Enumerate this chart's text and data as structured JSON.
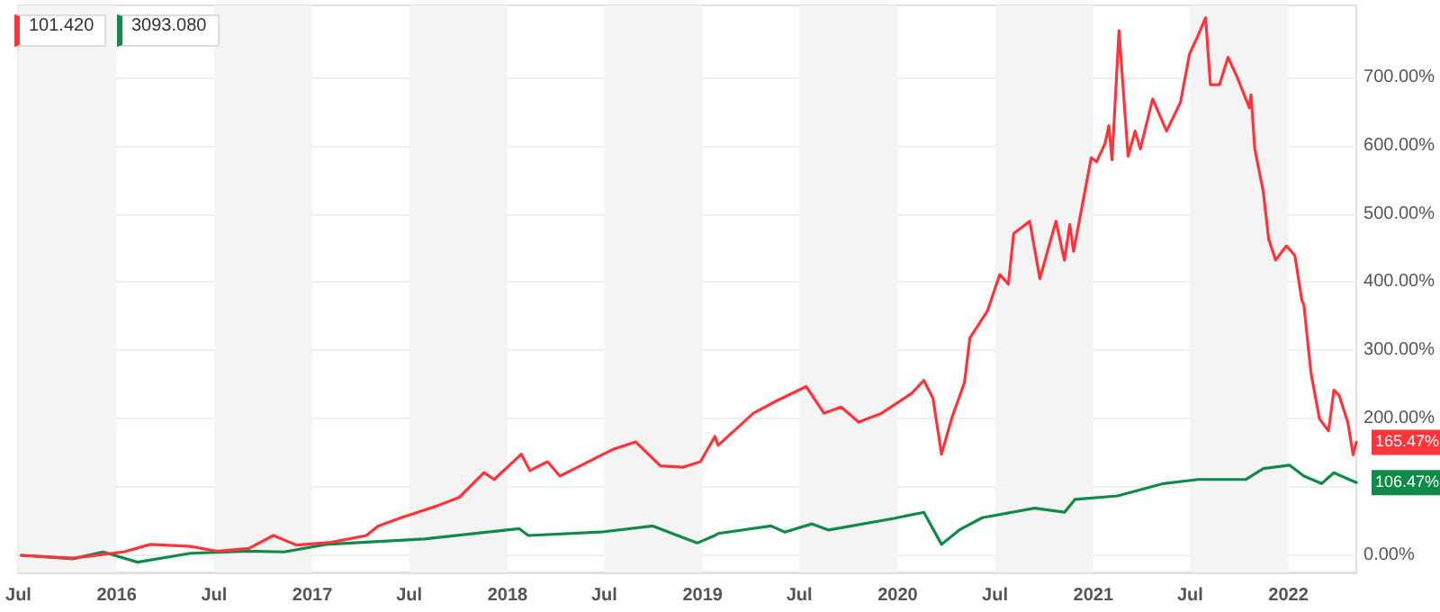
{
  "chart_data": {
    "type": "line",
    "xlim": [
      "2015-07-01",
      "2022-05-08"
    ],
    "xticks": [
      {
        "value": "2015-07-01",
        "label": "Jul"
      },
      {
        "value": "2016-01-01",
        "label": "2016"
      },
      {
        "value": "2016-07-01",
        "label": "Jul"
      },
      {
        "value": "2017-01-01",
        "label": "2017"
      },
      {
        "value": "2017-07-01",
        "label": "Jul"
      },
      {
        "value": "2018-01-01",
        "label": "2018"
      },
      {
        "value": "2018-07-01",
        "label": "Jul"
      },
      {
        "value": "2019-01-01",
        "label": "2019"
      },
      {
        "value": "2019-07-01",
        "label": "Jul"
      },
      {
        "value": "2020-01-01",
        "label": "2020"
      },
      {
        "value": "2020-07-01",
        "label": "Jul"
      },
      {
        "value": "2021-01-01",
        "label": "2021"
      },
      {
        "value": "2021-07-01",
        "label": "Jul"
      },
      {
        "value": "2022-01-01",
        "label": "2022"
      }
    ],
    "ylim": [
      -25,
      805
    ],
    "yticks": [
      {
        "value": 0,
        "label": "0.00%"
      },
      {
        "value": 100,
        "label": null
      },
      {
        "value": 200,
        "label": "200.00%"
      },
      {
        "value": 300,
        "label": "300.00%"
      },
      {
        "value": 400,
        "label": "400.00%"
      },
      {
        "value": 500,
        "label": "500.00%"
      },
      {
        "value": 600,
        "label": "600.00%"
      },
      {
        "value": 700,
        "label": "700.00%"
      }
    ],
    "grid": "y",
    "marker": "none",
    "line_style": "solid",
    "bands": [
      {
        "axis": "x",
        "from": "2015-07-01",
        "to": "2016-01-01",
        "color": "#f4f4f4"
      },
      {
        "axis": "x",
        "from": "2016-07-01",
        "to": "2017-01-01",
        "color": "#f4f4f4"
      },
      {
        "axis": "x",
        "from": "2017-07-01",
        "to": "2018-01-01",
        "color": "#f4f4f4"
      },
      {
        "axis": "x",
        "from": "2018-07-01",
        "to": "2019-01-01",
        "color": "#f4f4f4"
      },
      {
        "axis": "x",
        "from": "2019-07-01",
        "to": "2020-01-01",
        "color": "#f4f4f4"
      },
      {
        "axis": "x",
        "from": "2020-07-01",
        "to": "2021-01-01",
        "color": "#f4f4f4"
      },
      {
        "axis": "x",
        "from": "2021-07-01",
        "to": "2022-01-01",
        "color": "#f4f4f4"
      }
    ],
    "series": [
      {
        "color": "#ff333a",
        "x": [
          "2015-07-06",
          "2015-10-11",
          "2016-01-14",
          "2016-03-04",
          "2016-05-18",
          "2016-07-07",
          "2016-09-04",
          "2016-10-20",
          "2016-12-02",
          "2017-02-05",
          "2017-04-12",
          "2017-05-04",
          "2017-06-16",
          "2017-08-21",
          "2017-10-03",
          "2017-11-18",
          "2017-12-07",
          "2018-01-27",
          "2018-02-12",
          "2018-03-17",
          "2018-04-09",
          "2018-05-12",
          "2018-07-17",
          "2018-08-29",
          "2018-10-14",
          "2018-11-25",
          "2018-12-28",
          "2019-01-24",
          "2019-01-30",
          "2019-04-06",
          "2019-05-19",
          "2019-07-14",
          "2019-08-16",
          "2019-09-17",
          "2019-10-20",
          "2019-12-02",
          "2020-01-27",
          "2020-02-19",
          "2020-03-07",
          "2020-03-23",
          "2020-04-12",
          "2020-05-05",
          "2020-05-15",
          "2020-06-17",
          "2020-07-10",
          "2020-07-26",
          "2020-08-05",
          "2020-09-04",
          "2020-09-23",
          "2020-10-23",
          "2020-11-08",
          "2020-11-18",
          "2020-11-25",
          "2020-12-11",
          "2020-12-28",
          "2021-01-07",
          "2021-01-23",
          "2021-01-30",
          "2021-02-05",
          "2021-02-18",
          "2021-03-07",
          "2021-03-20",
          "2021-03-30",
          "2021-04-22",
          "2021-05-18",
          "2021-06-13",
          "2021-06-30",
          "2021-07-16",
          "2021-07-30",
          "2021-08-08",
          "2021-08-25",
          "2021-09-10",
          "2021-09-27",
          "2021-10-20",
          "2021-10-23",
          "2021-10-30",
          "2021-11-15",
          "2021-11-25",
          "2021-12-08",
          "2021-12-28",
          "2022-01-13",
          "2022-01-26",
          "2022-01-30",
          "2022-02-12",
          "2022-02-28",
          "2022-03-17",
          "2022-03-27",
          "2022-04-06",
          "2022-04-22",
          "2022-05-02",
          "2022-05-08"
        ],
        "values": [
          0,
          -4,
          5,
          16,
          13,
          6,
          10,
          29,
          15,
          19,
          29,
          43,
          55,
          72,
          85,
          121,
          111,
          148,
          124,
          137,
          116,
          129,
          155,
          166,
          131,
          129,
          137,
          174,
          161,
          208,
          226,
          247,
          208,
          217,
          195,
          208,
          237,
          256,
          230,
          148,
          203,
          253,
          318,
          358,
          411,
          397,
          471,
          489,
          405,
          489,
          432,
          484,
          445,
          511,
          582,
          576,
          603,
          629,
          579,
          768,
          584,
          621,
          595,
          668,
          621,
          663,
          734,
          761,
          787,
          689,
          689,
          729,
          700,
          655,
          674,
          595,
          532,
          463,
          432,
          453,
          439,
          374,
          366,
          268,
          200,
          182,
          242,
          234,
          195,
          147,
          165.47
        ]
      },
      {
        "color": "#0f8a48",
        "x": [
          "2015-07-06",
          "2015-10-11",
          "2015-12-06",
          "2016-02-09",
          "2016-05-18",
          "2016-09-04",
          "2016-11-09",
          "2017-01-27",
          "2017-07-29",
          "2018-01-23",
          "2018-02-09",
          "2018-06-24",
          "2018-09-30",
          "2018-12-22",
          "2019-01-24",
          "2019-01-30",
          "2019-05-09",
          "2019-06-04",
          "2019-07-24",
          "2019-08-25",
          "2019-12-25",
          "2020-02-19",
          "2020-03-23",
          "2020-04-25",
          "2020-06-07",
          "2020-09-13",
          "2020-11-08",
          "2020-11-28",
          "2021-02-15",
          "2021-05-12",
          "2021-07-16",
          "2021-10-13",
          "2021-11-15",
          "2022-01-03",
          "2022-01-30",
          "2022-03-04",
          "2022-03-27",
          "2022-05-08"
        ],
        "values": [
          0,
          -5,
          5,
          -10,
          3,
          6,
          5,
          16,
          24,
          39,
          29,
          34,
          43,
          18,
          29,
          32,
          43,
          34,
          46,
          37,
          54,
          63,
          16,
          37,
          55,
          69,
          63,
          82,
          87,
          105,
          111,
          111,
          127,
          132,
          116,
          105,
          121,
          106.47
        ]
      }
    ],
    "annotations": [
      "101.420",
      "3093.080",
      {
        "text": "165.47%",
        "x": "2022-05-08",
        "y": 165.47
      },
      {
        "text": "106.47%",
        "x": "2022-05-08",
        "y": 106.47
      }
    ]
  }
}
